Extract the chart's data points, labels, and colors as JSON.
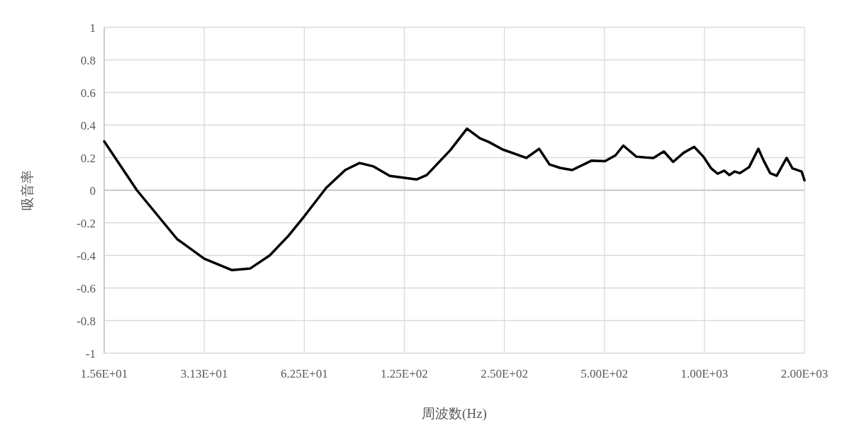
{
  "chart_data": {
    "type": "line",
    "xlabel": "周波数(Hz)",
    "ylabel": "吸音率",
    "log": "x",
    "grid": true,
    "xlim": [
      15.625,
      2000
    ],
    "ylim": [
      -1,
      1
    ],
    "xticks": [
      {
        "value": 15.625,
        "label": "1.56E+01"
      },
      {
        "value": 31.25,
        "label": "3.13E+01"
      },
      {
        "value": 62.5,
        "label": "6.25E+01"
      },
      {
        "value": 125,
        "label": "1.25E+02"
      },
      {
        "value": 250,
        "label": "2.50E+02"
      },
      {
        "value": 500,
        "label": "5.00E+02"
      },
      {
        "value": 1000,
        "label": "1.00E+03"
      },
      {
        "value": 2000,
        "label": "2.00E+03"
      }
    ],
    "yticks": [
      -1,
      -0.8,
      -0.6,
      -0.4,
      -0.2,
      0,
      0.2,
      0.4,
      0.6,
      0.8,
      1
    ],
    "series": [
      {
        "color": "#000000",
        "x": [
          15.625,
          19.6,
          25.9,
          31.25,
          37.8,
          43.0,
          49.2,
          56.0,
          62.5,
          72.8,
          83.0,
          91.6,
          101,
          113,
          136,
          146,
          172,
          193,
          211,
          225,
          247,
          270,
          291,
          318,
          342,
          368,
          400,
          458,
          502,
          540,
          570,
          624,
          665,
          702,
          755,
          805,
          866,
          931,
          993,
          1048,
          1096,
          1147,
          1189,
          1233,
          1279,
          1363,
          1453,
          1507,
          1577,
          1650,
          1768,
          1840,
          1961,
          2000
        ],
        "values": [
          0.3,
          0.0,
          -0.3,
          -0.42,
          -0.49,
          -0.48,
          -0.4,
          -0.28,
          -0.16,
          0.015,
          0.124,
          0.167,
          0.146,
          0.088,
          0.066,
          0.093,
          0.246,
          0.378,
          0.319,
          0.295,
          0.25,
          0.222,
          0.198,
          0.254,
          0.158,
          0.137,
          0.124,
          0.182,
          0.178,
          0.214,
          0.274,
          0.206,
          0.201,
          0.198,
          0.238,
          0.174,
          0.23,
          0.266,
          0.206,
          0.134,
          0.101,
          0.12,
          0.093,
          0.115,
          0.105,
          0.142,
          0.254,
          0.182,
          0.105,
          0.089,
          0.198,
          0.134,
          0.115,
          0.061
        ]
      }
    ]
  }
}
